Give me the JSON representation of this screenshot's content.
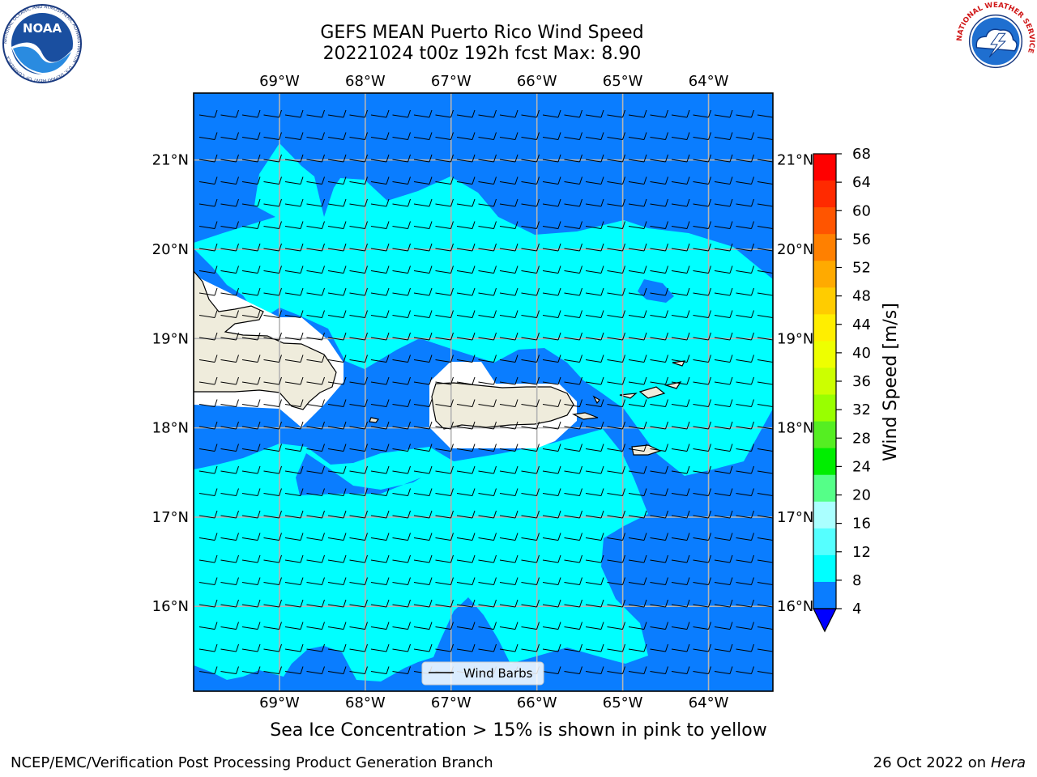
{
  "header": {
    "title_line1": "GEFS MEAN Puerto Rico Wind Speed",
    "title_line2": "20221024 t00z 192h fcst   Max: 8.90"
  },
  "logos": {
    "noaa": {
      "text": "NOAA",
      "ring_text": "NATIONAL OCEANIC AND ATMOSPHERIC ADMINISTRATION · U.S. DEPARTMENT OF COMMERCE"
    },
    "nws": {
      "ring_text": "NATIONAL WEATHER SERVICE"
    }
  },
  "map": {
    "lon_ticks": [
      "69°W",
      "68°W",
      "67°W",
      "66°W",
      "65°W",
      "64°W"
    ],
    "lat_ticks": [
      "21°N",
      "20°N",
      "19°N",
      "18°N",
      "17°N",
      "16°N"
    ],
    "lon_values": [
      -69,
      -68,
      -67,
      -66,
      -65,
      -64
    ],
    "lat_values": [
      21,
      20,
      19,
      18,
      17,
      16
    ],
    "extent": {
      "lon_min": -70,
      "lon_max": -63.25,
      "lat_min": 15.05,
      "lat_max": 21.75
    },
    "legend_label": "Wind Barbs",
    "colors": {
      "ocean_4_8": "#0a7dff",
      "ocean_8_12": "#00ffff",
      "land": "#efecdc",
      "grid": "#b4b4b4"
    }
  },
  "colorbar": {
    "label": "Wind Speed [m/s]",
    "ticks": [
      "68",
      "64",
      "60",
      "56",
      "52",
      "48",
      "44",
      "40",
      "36",
      "32",
      "28",
      "24",
      "20",
      "16",
      "12",
      "8",
      "4"
    ],
    "colors": [
      "#ff0000",
      "#ff2a00",
      "#ff5500",
      "#ff8000",
      "#ffaa00",
      "#ffcc00",
      "#ffee00",
      "#eeff00",
      "#ccff00",
      "#99ff00",
      "#55ee22",
      "#00ee00",
      "#55ff88",
      "#aaffff",
      "#55ffff",
      "#00ffff",
      "#0a7dff"
    ],
    "under_color": "#0000ff"
  },
  "subtitle": "Sea Ice Concentration > 15% is shown in pink to yellow",
  "footer": {
    "left": "NCEP/EMC/Verification Post Processing Product Generation Branch",
    "right_prefix": "26 Oct 2022 on ",
    "right_italic": "Hera"
  }
}
